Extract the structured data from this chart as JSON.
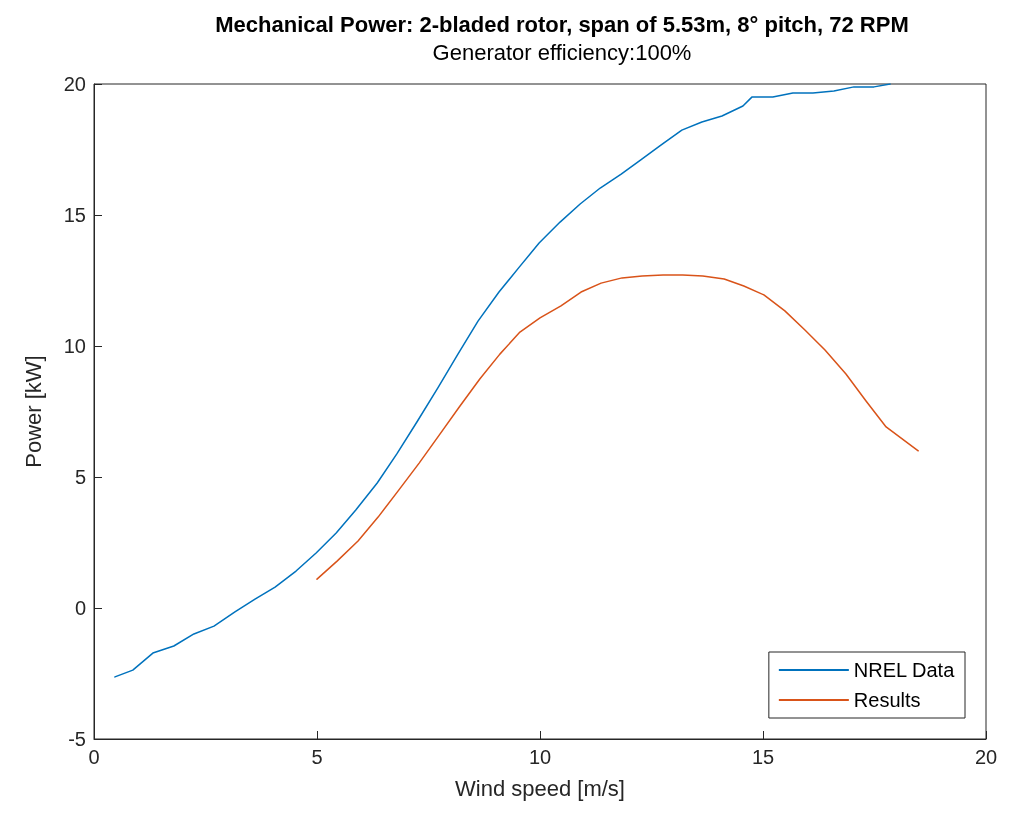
{
  "chart_data": {
    "type": "line",
    "title": "Mechanical Power: 2-bladed rotor, span of 5.53m, 8° pitch, 72 RPM",
    "subtitle": "Generator efficiency:100%",
    "xlabel": "Wind speed [m/s]",
    "ylabel": "Power [kW]",
    "xlim": [
      0,
      20
    ],
    "xticks": [
      0,
      5,
      10,
      15,
      20
    ],
    "ylim": [
      -5,
      20
    ],
    "yticks": [
      -5,
      0,
      5,
      10,
      15,
      20
    ],
    "grid": false,
    "legend": "bottom right",
    "marker": "none",
    "line_style": "solid",
    "series": [
      {
        "name": "NREL Data",
        "color": "#0072bd",
        "x": [
          0.47,
          0.87,
          1.32,
          1.79,
          2.24,
          2.69,
          3.16,
          3.61,
          4.06,
          4.53,
          4.98,
          5.43,
          5.87,
          6.35,
          6.79,
          7.24,
          7.71,
          8.16,
          8.61,
          9.08,
          9.53,
          9.98,
          10.45,
          10.9,
          11.35,
          11.82,
          12.26,
          12.71,
          13.18,
          13.63,
          14.08,
          14.55,
          14.75,
          15.22,
          15.67,
          16.12,
          16.59,
          17.04,
          17.49,
          17.85
        ],
        "values": [
          -2.63,
          -2.37,
          -1.72,
          -1.45,
          -0.99,
          -0.69,
          -0.15,
          0.34,
          0.8,
          1.41,
          2.1,
          2.86,
          3.74,
          4.77,
          5.88,
          7.1,
          8.4,
          9.69,
          10.95,
          12.06,
          13.0,
          13.93,
          14.73,
          15.42,
          16.03,
          16.56,
          17.1,
          17.67,
          18.24,
          18.55,
          18.78,
          19.16,
          19.5,
          19.5,
          19.66,
          19.66,
          19.73,
          19.89,
          19.89,
          20.0
        ]
      },
      {
        "name": "Results",
        "color": "#d95319",
        "x": [
          5.0,
          5.45,
          5.92,
          6.37,
          6.82,
          7.29,
          7.74,
          8.19,
          8.65,
          9.1,
          9.55,
          10.0,
          10.47,
          10.92,
          11.37,
          11.84,
          12.29,
          12.76,
          13.2,
          13.65,
          14.13,
          14.57,
          15.02,
          15.49,
          15.94,
          16.39,
          16.86,
          17.31,
          17.76,
          18.48
        ],
        "values": [
          1.1,
          1.79,
          2.56,
          3.47,
          4.47,
          5.53,
          6.6,
          7.67,
          8.74,
          9.69,
          10.53,
          11.07,
          11.53,
          12.06,
          12.4,
          12.6,
          12.67,
          12.71,
          12.71,
          12.67,
          12.56,
          12.29,
          11.95,
          11.34,
          10.61,
          9.85,
          8.93,
          7.9,
          6.91,
          6.0
        ]
      }
    ]
  }
}
